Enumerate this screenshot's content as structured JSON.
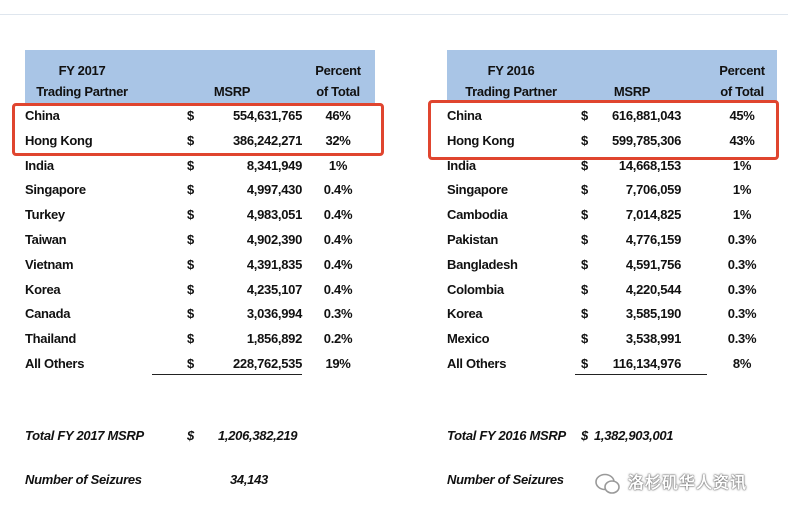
{
  "tables": [
    {
      "header": {
        "year": "FY 2017",
        "partner": "Trading Partner",
        "msrp": "MSRP",
        "percent": [
          "Percent",
          "of Total"
        ]
      },
      "rows": [
        [
          "China",
          "$",
          "554,631,765",
          "46%"
        ],
        [
          "Hong Kong",
          "$",
          "386,242,271",
          "32%"
        ],
        [
          "India",
          "$",
          "8,341,949",
          "1%"
        ],
        [
          "Singapore",
          "$",
          "4,997,430",
          "0.4%"
        ],
        [
          "Turkey",
          "$",
          "4,983,051",
          "0.4%"
        ],
        [
          "Taiwan",
          "$",
          "4,902,390",
          "0.4%"
        ],
        [
          "Vietnam",
          "$",
          "4,391,835",
          "0.4%"
        ],
        [
          "Korea",
          "$",
          "4,235,107",
          "0.4%"
        ],
        [
          "Canada",
          "$",
          "3,036,994",
          "0.3%"
        ],
        [
          "Thailand",
          "$",
          "1,856,892",
          "0.2%"
        ],
        [
          "All Others",
          "$",
          "228,762,535",
          "19%"
        ]
      ],
      "total": {
        "label": "Total FY 2017  MSRP",
        "currency": "$",
        "value": "1,206,382,219"
      },
      "seizures": {
        "label": "Number of Seizures",
        "value": "34,143"
      }
    },
    {
      "header": {
        "year": "FY 2016",
        "partner": "Trading Partner",
        "msrp": "MSRP",
        "percent": [
          "Percent",
          "of Total"
        ]
      },
      "rows": [
        [
          "China",
          "$",
          "616,881,043",
          "45%"
        ],
        [
          "Hong Kong",
          "$",
          "599,785,306",
          "43%"
        ],
        [
          "India",
          "$",
          "14,668,153",
          "1%"
        ],
        [
          "Singapore",
          "$",
          "7,706,059",
          "1%"
        ],
        [
          "Cambodia",
          "$",
          "7,014,825",
          "1%"
        ],
        [
          "Pakistan",
          "$",
          "4,776,159",
          "0.3%"
        ],
        [
          "Bangladesh",
          "$",
          "4,591,756",
          "0.3%"
        ],
        [
          "Colombia",
          "$",
          "4,220,544",
          "0.3%"
        ],
        [
          "Korea",
          "$",
          "3,585,190",
          "0.3%"
        ],
        [
          "Mexico",
          "$",
          "3,538,991",
          "0.3%"
        ],
        [
          "All Others",
          "$",
          "116,134,976",
          "8%"
        ]
      ],
      "total": {
        "label": "Total FY 2016 MSRP",
        "currency": "$",
        "value": "1,382,903,001"
      },
      "seizures": {
        "label": "Number of Seizures",
        "value": ""
      }
    }
  ],
  "watermark": "洛杉矶华人资讯"
}
